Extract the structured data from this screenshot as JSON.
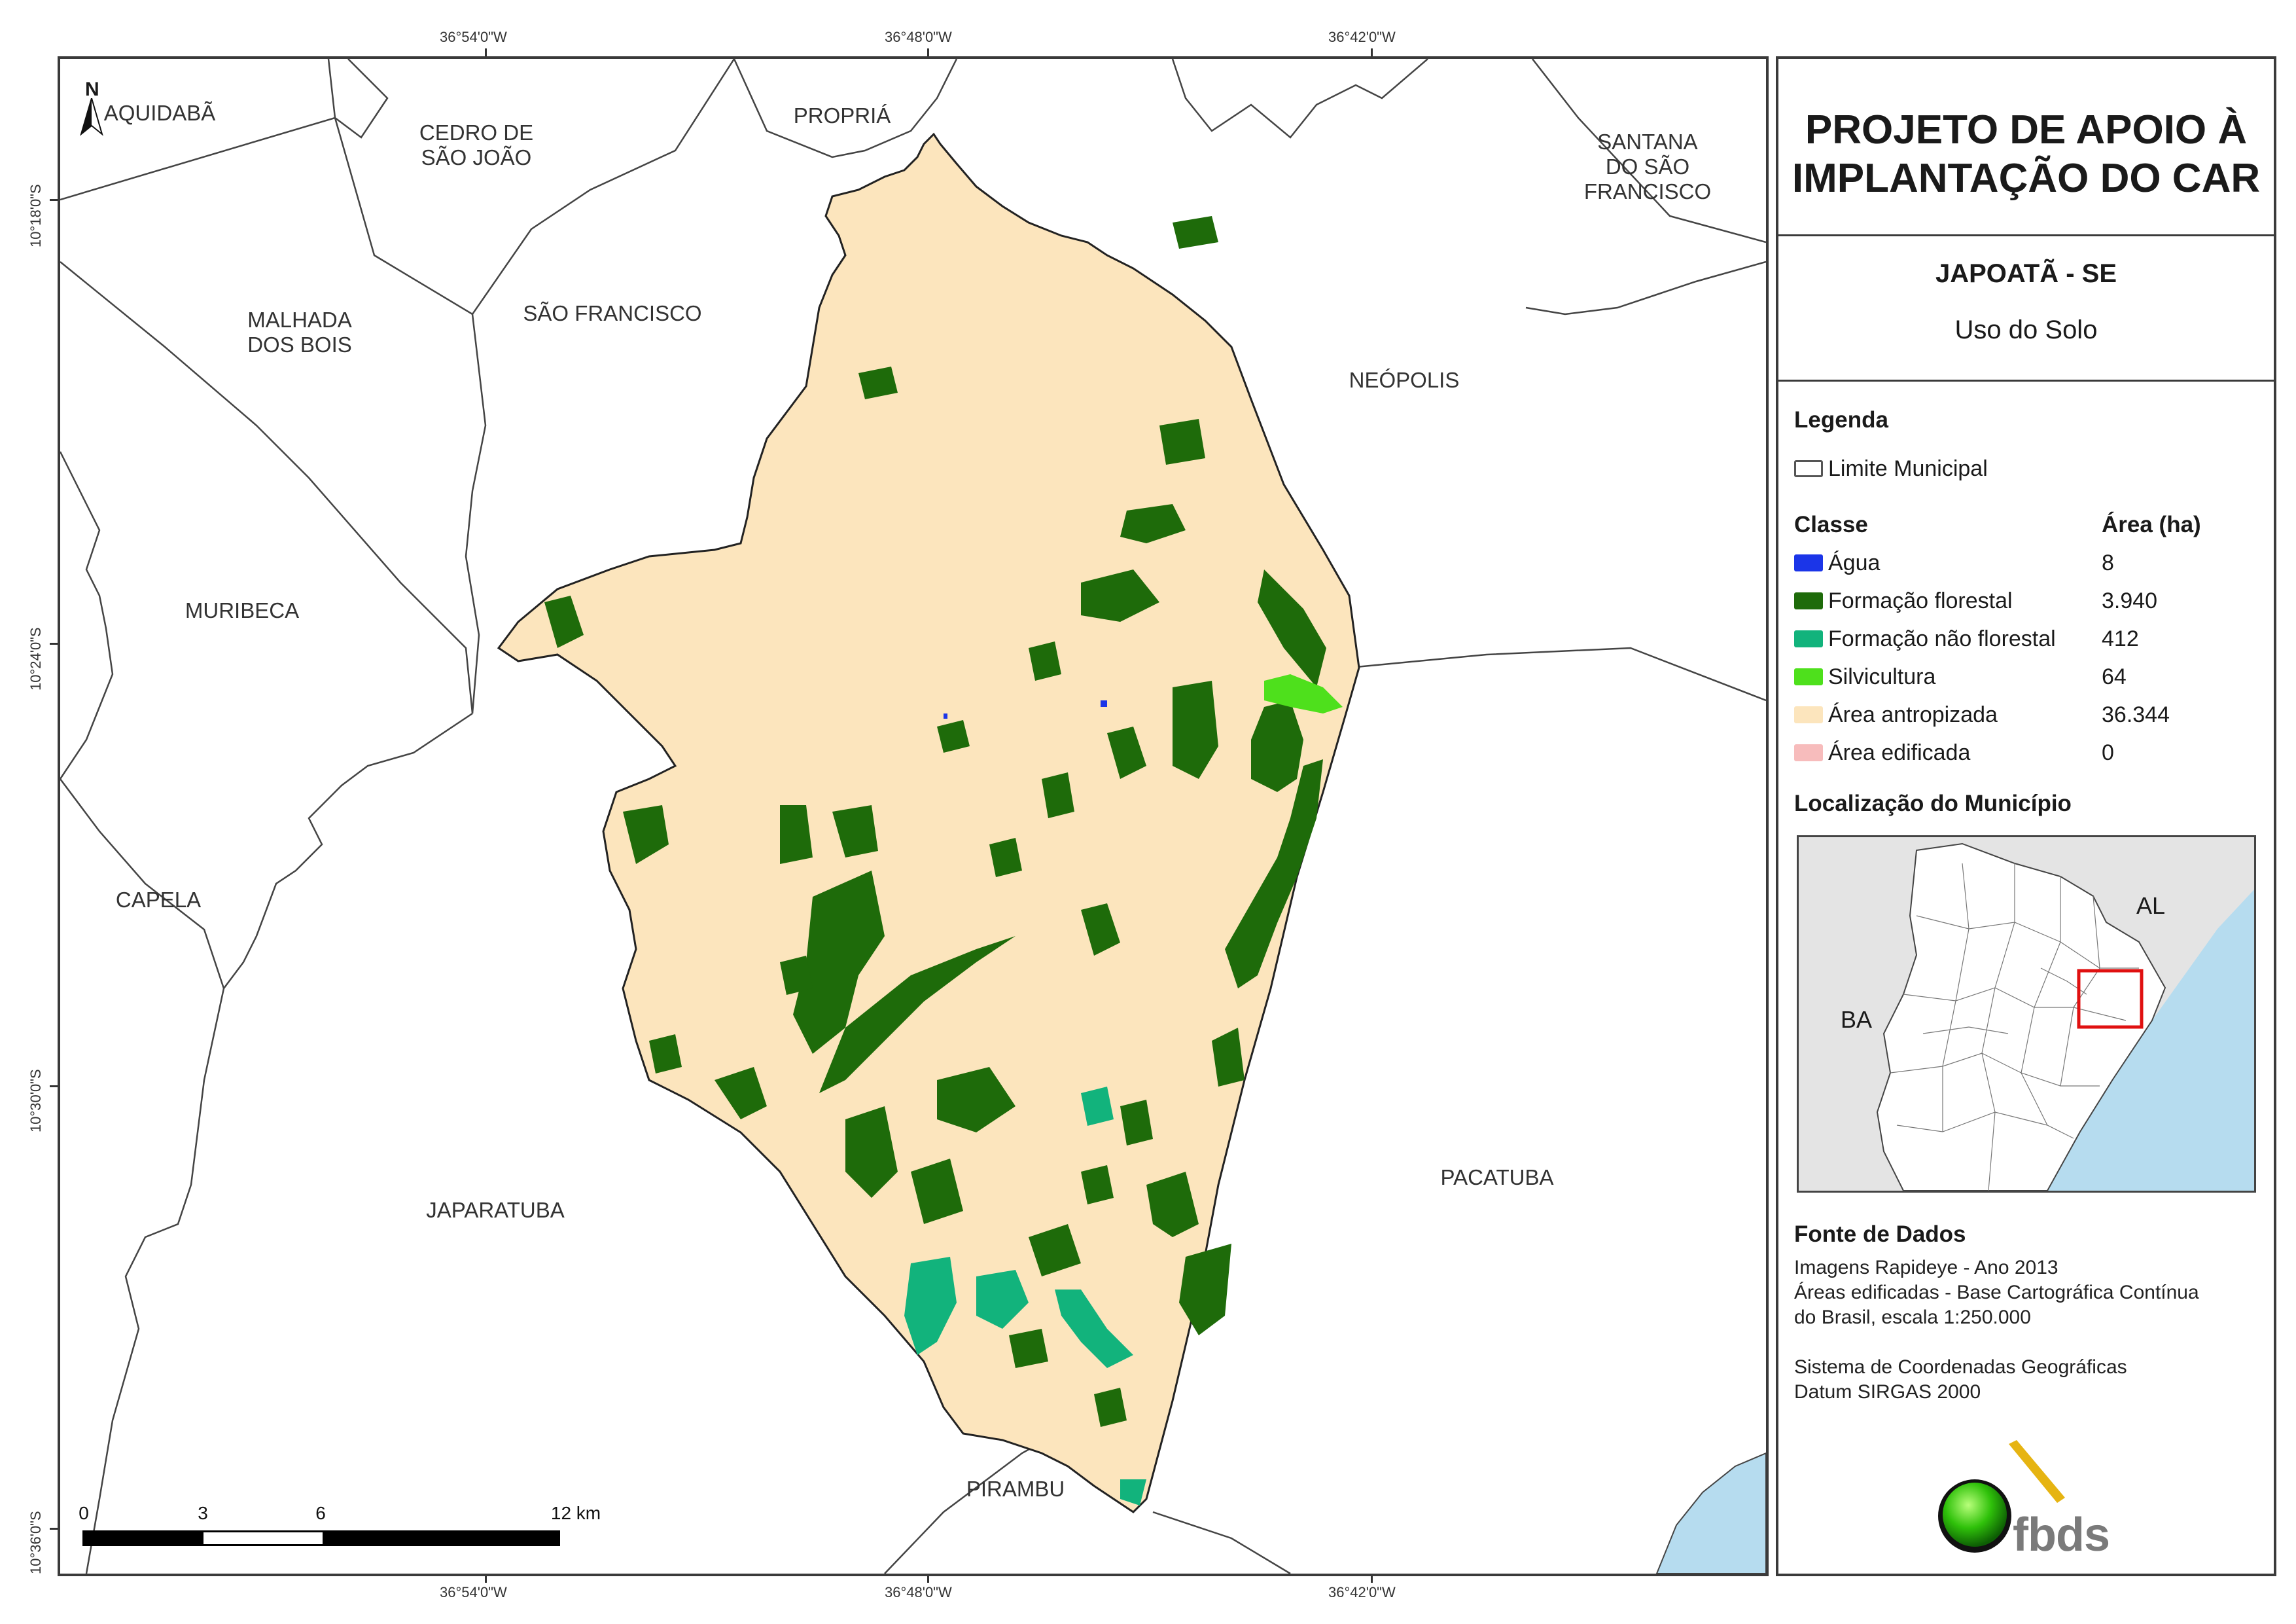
{
  "map": {
    "coords_top": [
      "36°54'0\"W",
      "36°48'0\"W",
      "36°42'0\"W"
    ],
    "coords_bottom": [
      "36°54'0\"W",
      "36°48'0\"W",
      "36°42'0\"W"
    ],
    "coords_left": [
      "10°18'0\"S",
      "10°24'0\"S",
      "10°30'0\"S",
      "10°36'0\"S"
    ],
    "north_label": "N",
    "municipalities": {
      "aquidaba": "AQUIDABÃ",
      "cedro": "CEDRO DE\nSÃO JOÃO",
      "propria": "PROPRIÁ",
      "santana": "SANTANA\nDO SÃO\nFRANCISCO",
      "malhada": "MALHADA\nDOS BOIS",
      "sao_francisco": "SÃO FRANCISCO",
      "neopolis": "NEÓPOLIS",
      "muribeca": "MURIBECA",
      "capela": "CAPELA",
      "japaratuba": "JAPARATUBA",
      "pacatuba": "PACATUBA",
      "pirambu": "PIRAMBU"
    },
    "scale": {
      "labels": [
        "0",
        "3",
        "6",
        "12 km"
      ]
    },
    "colors": {
      "antropizada": "#fce5bd",
      "florestal": "#1e6b0a",
      "nao_florestal": "#12b37c",
      "silvicultura": "#4ee01c",
      "agua": "#1b35e8",
      "sea": "#b6dcef",
      "boundary": "#333333"
    }
  },
  "panel": {
    "title": "PROJETO DE APOIO À\nIMPLANTAÇÃO DO CAR",
    "municipality": "JAPOATÃ - SE",
    "subtitle": "Uso do Solo",
    "legend_heading": "Legenda",
    "limit_label": "Limite Municipal",
    "class_header": "Classe",
    "area_header": "Área (ha)",
    "classes": [
      {
        "name": "Água",
        "area": "8",
        "color": "#1b35e8"
      },
      {
        "name": "Formação florestal",
        "area": "3.940",
        "color": "#1e6b0a"
      },
      {
        "name": "Formação não florestal",
        "area": "412",
        "color": "#12b37c"
      },
      {
        "name": "Silvicultura",
        "area": "64",
        "color": "#4ee01c"
      },
      {
        "name": "Área antropizada",
        "area": "36.344",
        "color": "#fce5bd"
      },
      {
        "name": "Área edificada",
        "area": "0",
        "color": "#f7bcbc"
      }
    ],
    "location_heading": "Localização do Município",
    "inset_labels": {
      "al": "AL",
      "ba": "BA"
    },
    "source_heading": "Fonte de Dados",
    "source_lines": [
      "Imagens Rapideye - Ano 2013",
      "Áreas edificadas - Base Cartográfica Contínua",
      "do Brasil, escala 1:250.000",
      "",
      "Sistema de Coordenadas Geográficas",
      "Datum SIRGAS 2000"
    ],
    "logo_text": "fbds"
  }
}
